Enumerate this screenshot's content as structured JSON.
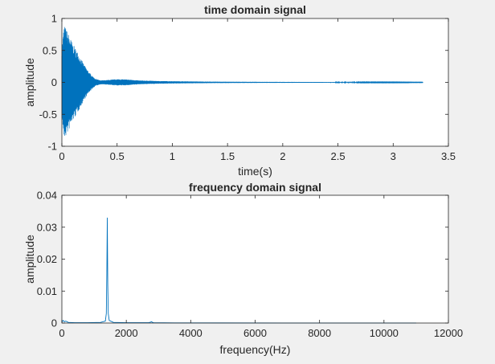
{
  "chart_data": [
    {
      "type": "line",
      "title": "time domain signal",
      "xlabel": "time(s)",
      "ylabel": "amplitude",
      "xlim": [
        0,
        3.5
      ],
      "ylim": [
        -1,
        1
      ],
      "xticks": [
        0,
        0.5,
        1,
        1.5,
        2,
        2.5,
        3,
        3.5
      ],
      "yticks": [
        -1,
        -0.5,
        0,
        0.5,
        1
      ],
      "xtick_labels": [
        "0",
        "0.5",
        "1",
        "1.5",
        "2",
        "2.5",
        "3",
        "3.5"
      ],
      "ytick_labels": [
        "-1",
        "-0.5",
        "0",
        "0.5",
        "1"
      ],
      "grid": false,
      "series_color": "#0072BD",
      "signal": {
        "description_values": true,
        "duration": 3.27,
        "peak_amplitude": 0.9,
        "envelope": [
          [
            0.0,
            0.55
          ],
          [
            0.02,
            0.9
          ],
          [
            0.05,
            0.8
          ],
          [
            0.1,
            0.6
          ],
          [
            0.15,
            0.45
          ],
          [
            0.2,
            0.28
          ],
          [
            0.25,
            0.15
          ],
          [
            0.3,
            0.06
          ],
          [
            0.35,
            0.03
          ],
          [
            0.4,
            0.035
          ],
          [
            0.5,
            0.05
          ],
          [
            0.6,
            0.045
          ],
          [
            0.7,
            0.03
          ],
          [
            0.8,
            0.025
          ],
          [
            0.9,
            0.02
          ],
          [
            1.0,
            0.018
          ],
          [
            1.3,
            0.012
          ],
          [
            1.6,
            0.009
          ],
          [
            2.0,
            0.007
          ],
          [
            2.5,
            0.005
          ],
          [
            3.0,
            0.004
          ],
          [
            3.27,
            0.003
          ]
        ]
      }
    },
    {
      "type": "line",
      "title": "frequency domain signal",
      "xlabel": "frequency(Hz)",
      "ylabel": "amplitude",
      "xlim": [
        0,
        12000
      ],
      "ylim": [
        0,
        0.04
      ],
      "xticks": [
        0,
        2000,
        4000,
        6000,
        8000,
        10000,
        12000
      ],
      "yticks": [
        0,
        0.01,
        0.02,
        0.03,
        0.04
      ],
      "xtick_labels": [
        "0",
        "2000",
        "4000",
        "6000",
        "8000",
        "10000",
        "12000"
      ],
      "ytick_labels": [
        "0",
        "0.01",
        "0.02",
        "0.03",
        "0.04"
      ],
      "grid": false,
      "series_color": "#0072BD",
      "x": [
        0,
        40,
        80,
        120,
        200,
        400,
        800,
        1200,
        1350,
        1380,
        1395,
        1410,
        1425,
        1440,
        1470,
        1600,
        2000,
        2700,
        2790,
        2810,
        2850,
        3500,
        5000,
        7000,
        9000,
        11000
      ],
      "y": [
        0.0003,
        0.0008,
        0.0004,
        0.0006,
        0.0002,
        0.0001,
        0.0001,
        0.0002,
        0.0006,
        0.003,
        0.015,
        0.033,
        0.012,
        0.003,
        0.0008,
        0.0002,
        0.0001,
        0.0001,
        0.0004,
        0.0002,
        0.0001,
        5e-05,
        3e-05,
        2e-05,
        2e-05,
        1e-05
      ]
    }
  ]
}
